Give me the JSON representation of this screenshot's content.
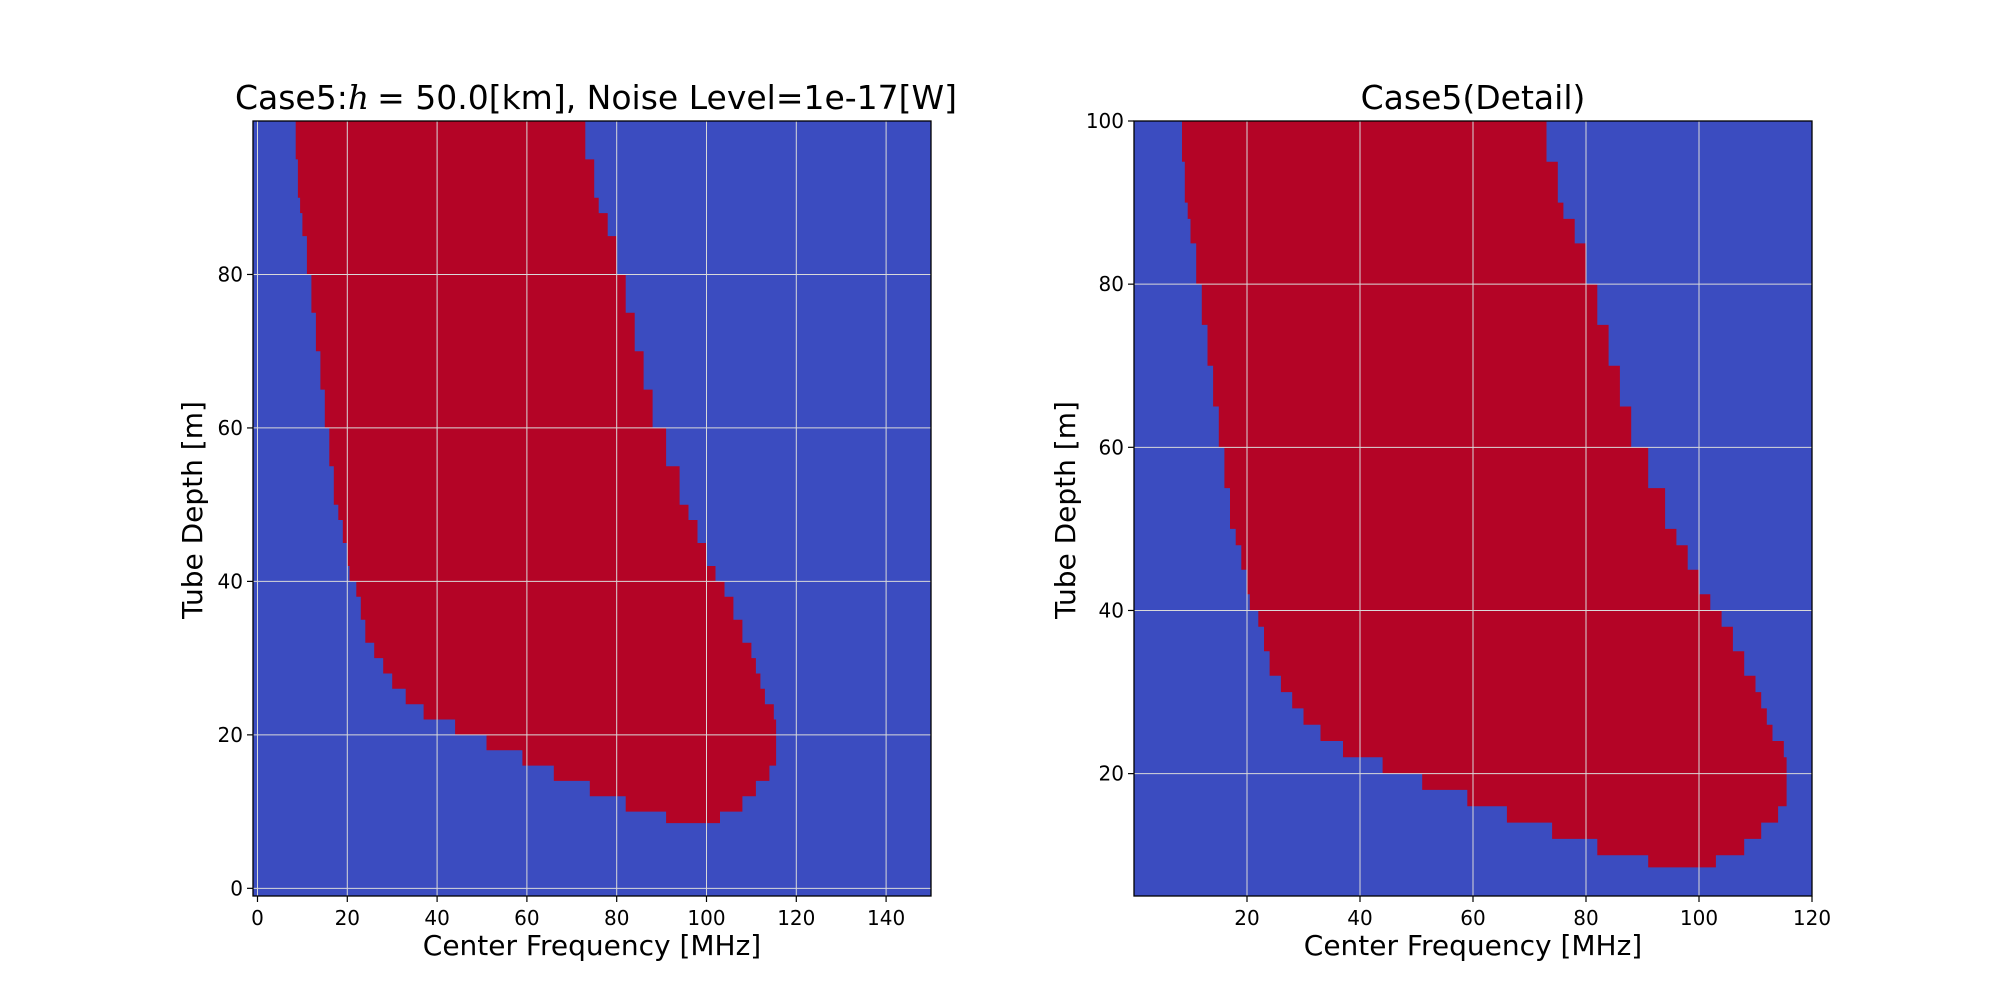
{
  "colors": {
    "background_region": "#3b4cc0",
    "detect_region": "#b40426",
    "grid": "#d9d9d9"
  },
  "chart_data": [
    {
      "type": "heatmap",
      "title_prefix": "Case5:",
      "title_var": "h",
      "title_suffix": "= 50.0[km], Noise Level=1e-17[W]",
      "xlabel": "Center Frequency [MHz]",
      "ylabel": "Tube Depth [m]",
      "xlim": [
        -1,
        150
      ],
      "ylim": [
        -1,
        100
      ],
      "xticks": [
        0,
        20,
        40,
        60,
        80,
        100,
        120,
        140
      ],
      "yticks": [
        0,
        20,
        40,
        60,
        80
      ],
      "grid": true,
      "region_boundary": {
        "depth": [
          8.5,
          10,
          12,
          14,
          16,
          18,
          20,
          22,
          24,
          26,
          28,
          30,
          32,
          35,
          38,
          40,
          42,
          45,
          48,
          50,
          55,
          60,
          65,
          70,
          75,
          80,
          85,
          88,
          90,
          95,
          100
        ],
        "freq_low": [
          91,
          82,
          74,
          66,
          59,
          51,
          44,
          37,
          33,
          30,
          28,
          26,
          24,
          23,
          22,
          20.5,
          20,
          19,
          18,
          17,
          16,
          15,
          14,
          13,
          12,
          11,
          10,
          9.5,
          9,
          8.5,
          8.5
        ],
        "freq_high": [
          103,
          108,
          111,
          114,
          115.5,
          115.5,
          115.5,
          115,
          113,
          112,
          111,
          110,
          108,
          106,
          104,
          102,
          100,
          98,
          96,
          94,
          91,
          88,
          86,
          84,
          82,
          80,
          78,
          76,
          75,
          73,
          72
        ]
      }
    },
    {
      "type": "heatmap",
      "title": "Case5(Detail)",
      "xlabel": "Center Frequency [MHz]",
      "ylabel": "Tube Depth [m]",
      "xlim": [
        0,
        120
      ],
      "ylim": [
        5,
        100
      ],
      "xticks": [
        20,
        40,
        60,
        80,
        100,
        120
      ],
      "yticks": [
        20,
        40,
        60,
        80,
        100
      ],
      "grid": true,
      "region_boundary": {
        "depth": [
          8.5,
          10,
          12,
          14,
          16,
          18,
          20,
          22,
          24,
          26,
          28,
          30,
          32,
          35,
          38,
          40,
          42,
          45,
          48,
          50,
          55,
          60,
          65,
          70,
          75,
          80,
          85,
          88,
          90,
          95,
          100
        ],
        "freq_low": [
          91,
          82,
          74,
          66,
          59,
          51,
          44,
          37,
          33,
          30,
          28,
          26,
          24,
          23,
          22,
          20.5,
          20,
          19,
          18,
          17,
          16,
          15,
          14,
          13,
          12,
          11,
          10,
          9.5,
          9,
          8.5,
          8.5
        ],
        "freq_high": [
          103,
          108,
          111,
          114,
          115.5,
          115.5,
          115.5,
          115,
          113,
          112,
          111,
          110,
          108,
          106,
          104,
          102,
          100,
          98,
          96,
          94,
          91,
          88,
          86,
          84,
          82,
          80,
          78,
          76,
          75,
          73,
          72
        ]
      }
    }
  ]
}
